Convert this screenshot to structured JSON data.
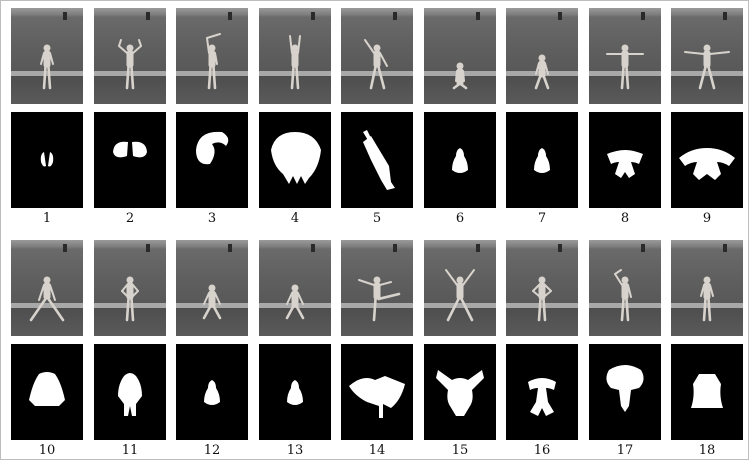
{
  "figure": {
    "rows": [
      {
        "frames": [
          {
            "label": "1",
            "pose": "stand-arms-front",
            "mask": "small-split"
          },
          {
            "label": "2",
            "pose": "arms-up-bent",
            "mask": "two-lobes"
          },
          {
            "label": "3",
            "pose": "side-bend",
            "mask": "swirl"
          },
          {
            "label": "4",
            "pose": "arms-overhead",
            "mask": "big-blob"
          },
          {
            "label": "5",
            "pose": "diagonal-reach",
            "mask": "diagonal"
          },
          {
            "label": "6",
            "pose": "bend-forward",
            "mask": "small-bell"
          },
          {
            "label": "7",
            "pose": "crouch",
            "mask": "small-bell"
          },
          {
            "label": "8",
            "pose": "t-pose",
            "mask": "cross"
          },
          {
            "label": "9",
            "pose": "wide-t-pose",
            "mask": "wide-cross"
          }
        ]
      },
      {
        "frames": [
          {
            "label": "10",
            "pose": "wide-lunge",
            "mask": "trapezoid"
          },
          {
            "label": "11",
            "pose": "hands-on-hips",
            "mask": "bell"
          },
          {
            "label": "12",
            "pose": "squat",
            "mask": "small-bell"
          },
          {
            "label": "13",
            "pose": "squat",
            "mask": "small-bell"
          },
          {
            "label": "14",
            "pose": "leg-kick",
            "mask": "fan"
          },
          {
            "label": "15",
            "pose": "jumping-jack",
            "mask": "x-shape"
          },
          {
            "label": "16",
            "pose": "stand-hands-hips",
            "mask": "t-body"
          },
          {
            "label": "17",
            "pose": "arm-circle",
            "mask": "burst"
          },
          {
            "label": "18",
            "pose": "stand",
            "mask": "rect-body"
          }
        ]
      }
    ]
  }
}
